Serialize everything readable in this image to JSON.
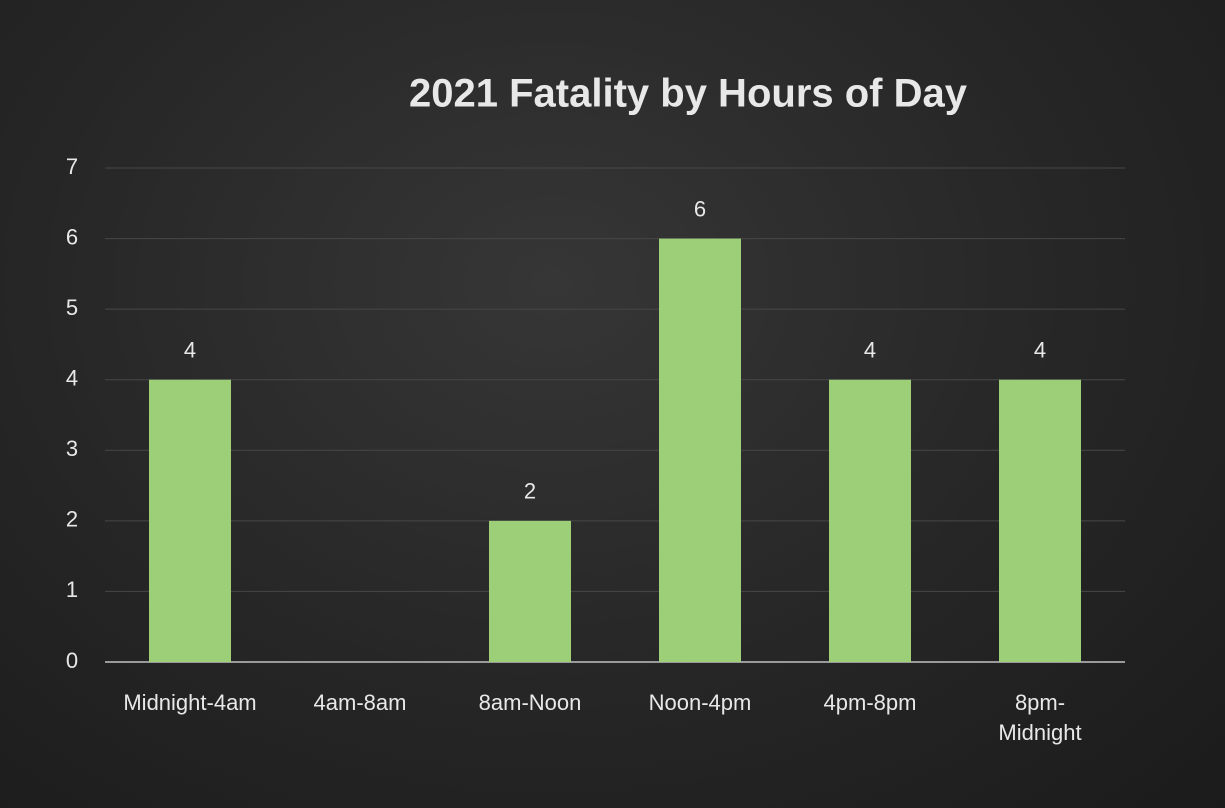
{
  "chart_data": {
    "type": "bar",
    "title": "2021 Fatality  by Hours of Day",
    "categories": [
      "Midnight-4am",
      "4am-8am",
      "8am-Noon",
      "Noon-4pm",
      "4pm-8pm",
      "8pm-Midnight"
    ],
    "values": [
      4,
      0,
      2,
      6,
      4,
      4
    ],
    "value_labels": [
      "4",
      null,
      "2",
      "6",
      "4",
      "4"
    ],
    "color": "#9ccf78",
    "ylim": [
      0,
      7
    ],
    "yticks": [
      0,
      1,
      2,
      3,
      4,
      5,
      6,
      7
    ],
    "grid": true
  }
}
